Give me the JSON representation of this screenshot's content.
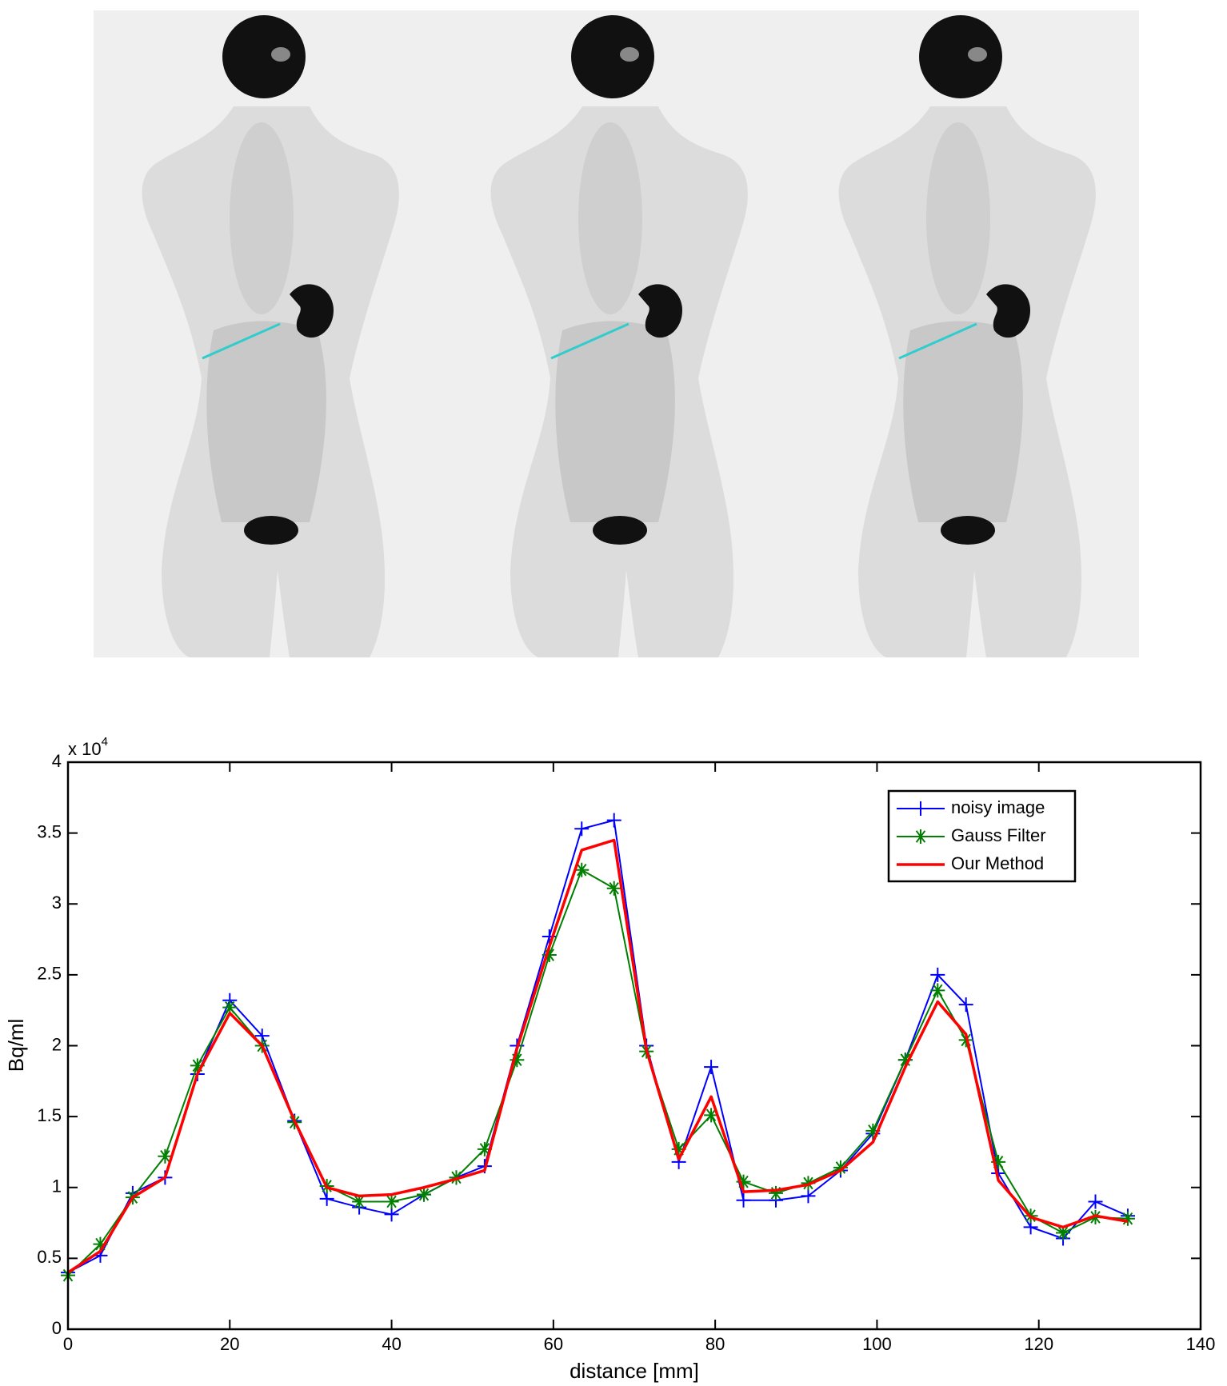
{
  "chart_data": {
    "type": "line",
    "xlabel": "distance [mm]",
    "ylabel": "Bq/ml",
    "y_multiplier": {
      "base": "x 10",
      "exponent": "4"
    },
    "x": [
      0,
      4,
      8,
      12,
      16,
      20,
      24,
      28,
      32,
      36,
      40,
      44,
      48,
      51.5,
      55.5,
      59.5,
      63.5,
      67.5,
      71.5,
      75.5,
      79.5,
      83.5,
      87.5,
      91.5,
      95.5,
      99.5,
      103.5,
      107.5,
      111,
      115,
      119,
      123,
      127,
      131
    ],
    "series": [
      {
        "name": "noisy image",
        "color": "#0000ff",
        "marker": "+",
        "linewidth": 2,
        "values": [
          0.4,
          0.52,
          0.96,
          1.07,
          1.8,
          2.32,
          2.07,
          1.47,
          0.92,
          0.86,
          0.81,
          0.95,
          1.07,
          1.15,
          2.0,
          2.77,
          3.53,
          3.59,
          2.0,
          1.18,
          1.85,
          0.91,
          0.91,
          0.94,
          1.12,
          1.38,
          1.9,
          2.5,
          2.29,
          1.1,
          0.72,
          0.64,
          0.9,
          0.8
        ]
      },
      {
        "name": "Gauss Filter",
        "color": "#007f00",
        "marker": "*",
        "linewidth": 2,
        "values": [
          0.38,
          0.6,
          0.93,
          1.22,
          1.86,
          2.27,
          2.0,
          1.46,
          1.01,
          0.9,
          0.9,
          0.95,
          1.07,
          1.27,
          1.9,
          2.64,
          3.24,
          3.11,
          1.96,
          1.27,
          1.51,
          1.04,
          0.96,
          1.03,
          1.14,
          1.4,
          1.9,
          2.39,
          2.04,
          1.18,
          0.8,
          0.68,
          0.79,
          0.78
        ]
      },
      {
        "name": "Our Method",
        "color": "#ff0000",
        "marker": "none",
        "linewidth": 3.5,
        "values": [
          0.4,
          0.55,
          0.93,
          1.07,
          1.8,
          2.23,
          2.0,
          1.47,
          1.0,
          0.94,
          0.95,
          1.0,
          1.06,
          1.12,
          1.98,
          2.7,
          3.38,
          3.45,
          1.97,
          1.2,
          1.64,
          0.97,
          0.98,
          1.02,
          1.12,
          1.32,
          1.85,
          2.31,
          2.08,
          1.05,
          0.79,
          0.72,
          0.8,
          0.76
        ]
      }
    ],
    "xlim": [
      0,
      140
    ],
    "xticks": [
      0,
      20,
      40,
      60,
      80,
      100,
      120,
      140
    ],
    "ylim": [
      0,
      4
    ],
    "yticks": [
      0,
      0.5,
      1,
      1.5,
      2,
      2.5,
      3,
      3.5,
      4
    ],
    "grid": false,
    "legend": "upper right"
  }
}
